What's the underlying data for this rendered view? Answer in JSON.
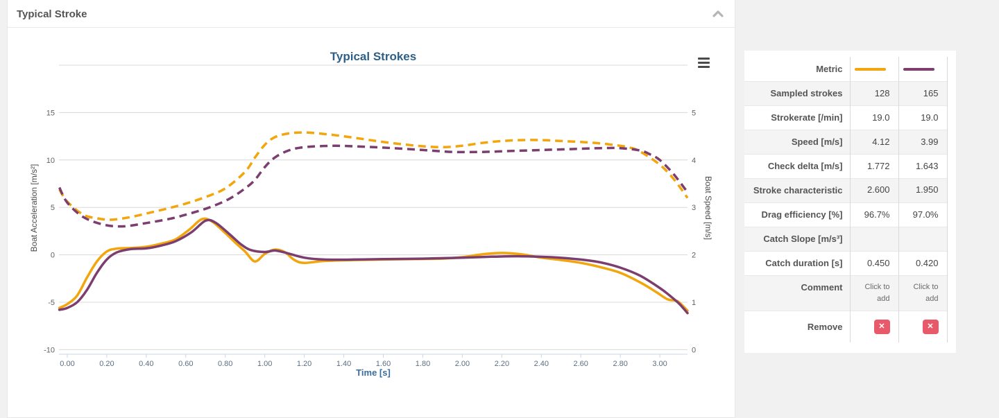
{
  "panel": {
    "title": "Typical Stroke"
  },
  "colors": {
    "series_yellow": "#f2a50c",
    "series_purple": "#7b3e6e",
    "grid": "#d8d8d8",
    "axis_line": "#ccd6eb",
    "remove_red": "#e8596a"
  },
  "chart_data": {
    "type": "line",
    "title": "Typical Strokes",
    "x_axis": {
      "title": "Time [s]",
      "range": [
        -0.042,
        3.14
      ],
      "ticks": [
        "0.00",
        "0.20",
        "0.40",
        "0.60",
        "0.80",
        "1.00",
        "1.20",
        "1.40",
        "1.60",
        "1.80",
        "2.00",
        "2.20",
        "2.40",
        "2.60",
        "2.80",
        "3.00"
      ]
    },
    "y_axis_left": {
      "title": "Boat Acceleration [m/s²]",
      "range": [
        -10,
        20
      ],
      "ticks": [
        15,
        10,
        5,
        0,
        -5,
        -10
      ],
      "gridlines": [
        20,
        15,
        10,
        5,
        0,
        -5,
        -10
      ]
    },
    "y_axis_right": {
      "title": "Boat Speed [m/s]",
      "range": [
        0,
        6
      ],
      "ticks": [
        5,
        4,
        3,
        2,
        1,
        0
      ]
    },
    "legend_position": "none",
    "series": [
      {
        "name": "boat-acceleration-stroke-1",
        "color": "#f2a50c",
        "style": "solid",
        "axis": "left",
        "points": [
          [
            -0.04,
            -5.6
          ],
          [
            0,
            -5.2
          ],
          [
            0.05,
            -4.3
          ],
          [
            0.1,
            -2.4
          ],
          [
            0.15,
            -0.7
          ],
          [
            0.2,
            0.35
          ],
          [
            0.25,
            0.65
          ],
          [
            0.32,
            0.72
          ],
          [
            0.4,
            0.85
          ],
          [
            0.48,
            1.2
          ],
          [
            0.55,
            1.65
          ],
          [
            0.62,
            2.7
          ],
          [
            0.68,
            3.75
          ],
          [
            0.73,
            3.55
          ],
          [
            0.8,
            2.3
          ],
          [
            0.85,
            1.3
          ],
          [
            0.9,
            0.35
          ],
          [
            0.95,
            -0.7
          ],
          [
            1.0,
            0.1
          ],
          [
            1.05,
            0.55
          ],
          [
            1.1,
            0.3
          ],
          [
            1.15,
            -0.55
          ],
          [
            1.2,
            -0.85
          ],
          [
            1.3,
            -0.65
          ],
          [
            1.45,
            -0.55
          ],
          [
            1.6,
            -0.5
          ],
          [
            1.75,
            -0.45
          ],
          [
            1.9,
            -0.4
          ],
          [
            2.0,
            -0.25
          ],
          [
            2.1,
            0.05
          ],
          [
            2.2,
            0.2
          ],
          [
            2.3,
            0.05
          ],
          [
            2.4,
            -0.3
          ],
          [
            2.5,
            -0.55
          ],
          [
            2.6,
            -0.85
          ],
          [
            2.7,
            -1.3
          ],
          [
            2.8,
            -1.9
          ],
          [
            2.9,
            -2.9
          ],
          [
            2.98,
            -3.9
          ],
          [
            3.04,
            -4.7
          ],
          [
            3.09,
            -4.9
          ],
          [
            3.14,
            -5.9
          ]
        ]
      },
      {
        "name": "boat-acceleration-stroke-2",
        "color": "#7b3e6e",
        "style": "solid",
        "axis": "left",
        "points": [
          [
            -0.04,
            -5.8
          ],
          [
            0,
            -5.6
          ],
          [
            0.05,
            -5.0
          ],
          [
            0.1,
            -3.7
          ],
          [
            0.15,
            -1.9
          ],
          [
            0.2,
            -0.5
          ],
          [
            0.25,
            0.25
          ],
          [
            0.32,
            0.6
          ],
          [
            0.4,
            0.68
          ],
          [
            0.48,
            1.0
          ],
          [
            0.55,
            1.45
          ],
          [
            0.63,
            2.4
          ],
          [
            0.7,
            3.6
          ],
          [
            0.75,
            3.4
          ],
          [
            0.82,
            2.2
          ],
          [
            0.88,
            1.1
          ],
          [
            0.93,
            0.5
          ],
          [
            1.0,
            0.3
          ],
          [
            1.05,
            0.45
          ],
          [
            1.1,
            0.25
          ],
          [
            1.2,
            -0.3
          ],
          [
            1.3,
            -0.5
          ],
          [
            1.45,
            -0.5
          ],
          [
            1.6,
            -0.45
          ],
          [
            1.8,
            -0.4
          ],
          [
            2.0,
            -0.3
          ],
          [
            2.15,
            -0.2
          ],
          [
            2.3,
            -0.15
          ],
          [
            2.45,
            -0.25
          ],
          [
            2.6,
            -0.5
          ],
          [
            2.7,
            -0.8
          ],
          [
            2.8,
            -1.35
          ],
          [
            2.9,
            -2.2
          ],
          [
            3.0,
            -3.5
          ],
          [
            3.05,
            -4.3
          ],
          [
            3.1,
            -5.2
          ],
          [
            3.14,
            -6.15
          ]
        ]
      },
      {
        "name": "boat-speed-stroke-1",
        "color": "#f2a50c",
        "style": "dashed",
        "axis": "right",
        "points": [
          [
            -0.04,
            3.38
          ],
          [
            0,
            3.12
          ],
          [
            0.08,
            2.85
          ],
          [
            0.15,
            2.77
          ],
          [
            0.22,
            2.74
          ],
          [
            0.3,
            2.78
          ],
          [
            0.4,
            2.87
          ],
          [
            0.5,
            2.97
          ],
          [
            0.6,
            3.08
          ],
          [
            0.7,
            3.22
          ],
          [
            0.8,
            3.4
          ],
          [
            0.9,
            3.75
          ],
          [
            0.95,
            4.05
          ],
          [
            1.0,
            4.32
          ],
          [
            1.05,
            4.48
          ],
          [
            1.12,
            4.56
          ],
          [
            1.2,
            4.58
          ],
          [
            1.3,
            4.55
          ],
          [
            1.4,
            4.5
          ],
          [
            1.5,
            4.44
          ],
          [
            1.6,
            4.38
          ],
          [
            1.7,
            4.33
          ],
          [
            1.8,
            4.29
          ],
          [
            1.9,
            4.27
          ],
          [
            2.0,
            4.3
          ],
          [
            2.1,
            4.36
          ],
          [
            2.2,
            4.4
          ],
          [
            2.3,
            4.42
          ],
          [
            2.4,
            4.42
          ],
          [
            2.5,
            4.4
          ],
          [
            2.6,
            4.38
          ],
          [
            2.7,
            4.35
          ],
          [
            2.8,
            4.3
          ],
          [
            2.85,
            4.26
          ],
          [
            2.9,
            4.18
          ],
          [
            3.0,
            3.9
          ],
          [
            3.07,
            3.6
          ],
          [
            3.14,
            3.2
          ]
        ]
      },
      {
        "name": "boat-speed-stroke-2",
        "color": "#7b3e6e",
        "style": "dashed",
        "axis": "right",
        "points": [
          [
            -0.04,
            3.42
          ],
          [
            0,
            3.1
          ],
          [
            0.08,
            2.8
          ],
          [
            0.18,
            2.64
          ],
          [
            0.28,
            2.6
          ],
          [
            0.4,
            2.67
          ],
          [
            0.52,
            2.76
          ],
          [
            0.62,
            2.87
          ],
          [
            0.72,
            3.0
          ],
          [
            0.82,
            3.18
          ],
          [
            0.9,
            3.4
          ],
          [
            0.95,
            3.58
          ],
          [
            1.0,
            3.85
          ],
          [
            1.05,
            4.05
          ],
          [
            1.12,
            4.2
          ],
          [
            1.2,
            4.27
          ],
          [
            1.35,
            4.3
          ],
          [
            1.5,
            4.28
          ],
          [
            1.65,
            4.25
          ],
          [
            1.8,
            4.21
          ],
          [
            1.95,
            4.17
          ],
          [
            2.1,
            4.17
          ],
          [
            2.25,
            4.19
          ],
          [
            2.4,
            4.21
          ],
          [
            2.55,
            4.23
          ],
          [
            2.7,
            4.25
          ],
          [
            2.8,
            4.25
          ],
          [
            2.9,
            4.2
          ],
          [
            2.95,
            4.12
          ],
          [
            3.0,
            4.0
          ],
          [
            3.07,
            3.7
          ],
          [
            3.14,
            3.32
          ]
        ]
      }
    ]
  },
  "table": {
    "remove_glyph": "✕",
    "rows": [
      {
        "label": "Metric",
        "type": "swatch",
        "values": [
          "#f2a50c",
          "#7b3e6e"
        ]
      },
      {
        "label": "Sampled strokes",
        "type": "text",
        "values": [
          "128",
          "165"
        ]
      },
      {
        "label": "Strokerate [/min]",
        "type": "text",
        "values": [
          "19.0",
          "19.0"
        ]
      },
      {
        "label": "Speed [m/s]",
        "type": "text",
        "values": [
          "4.12",
          "3.99"
        ]
      },
      {
        "label": "Check delta [m/s]",
        "type": "text",
        "values": [
          "1.772",
          "1.643"
        ]
      },
      {
        "label": "Stroke characteristic",
        "type": "text",
        "tall": true,
        "values": [
          "2.600",
          "1.950"
        ]
      },
      {
        "label": "Drag efficiency [%]",
        "type": "text",
        "values": [
          "96.7%",
          "97.0%"
        ]
      },
      {
        "label": "Catch Slope [m/s³]",
        "type": "text",
        "values": [
          "",
          ""
        ]
      },
      {
        "label": "Catch duration [s]",
        "type": "text",
        "values": [
          "0.450",
          "0.420"
        ]
      },
      {
        "label": "Comment",
        "type": "comment",
        "tall": true,
        "values": [
          "Click to add",
          "Click to add"
        ]
      },
      {
        "label": "Remove",
        "type": "remove",
        "values": [
          "remove",
          "remove"
        ]
      }
    ]
  }
}
